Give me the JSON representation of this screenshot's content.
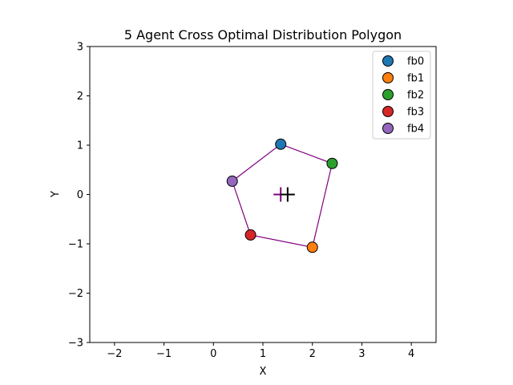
{
  "chart_data": {
    "type": "scatter",
    "title": "5 Agent Cross Optimal Distribution Polygon",
    "xlabel": "X",
    "ylabel": "Y",
    "xlim": [
      -2.5,
      4.5
    ],
    "ylim": [
      -3,
      3
    ],
    "xticks": [
      -2,
      -1,
      0,
      1,
      2,
      3,
      4
    ],
    "yticks": [
      -3,
      -2,
      -1,
      0,
      1,
      2,
      3
    ],
    "xtick_labels": [
      "−2",
      "−1",
      "0",
      "1",
      "2",
      "3",
      "4"
    ],
    "ytick_labels": [
      "−3",
      "−2",
      "−1",
      "0",
      "1",
      "2",
      "3"
    ],
    "grid": false,
    "legend_position": "top-right",
    "polygon_color": "#800080",
    "series": [
      {
        "name": "fb0",
        "x": 1.36,
        "y": 1.02,
        "color": "#1f77b4"
      },
      {
        "name": "fb1",
        "x": 2.0,
        "y": -1.07,
        "color": "#ff7f0e"
      },
      {
        "name": "fb2",
        "x": 2.4,
        "y": 0.63,
        "color": "#2ca02c"
      },
      {
        "name": "fb3",
        "x": 0.75,
        "y": -0.82,
        "color": "#d62728"
      },
      {
        "name": "fb4",
        "x": 0.38,
        "y": 0.27,
        "color": "#9467bd"
      }
    ],
    "polygon_order": [
      "fb0",
      "fb2",
      "fb1",
      "fb3",
      "fb4"
    ],
    "markers": [
      {
        "type": "plus",
        "x": 1.36,
        "y": 0.0,
        "color": "#800080"
      },
      {
        "type": "plus",
        "x": 1.5,
        "y": 0.0,
        "color": "#000000"
      }
    ]
  }
}
